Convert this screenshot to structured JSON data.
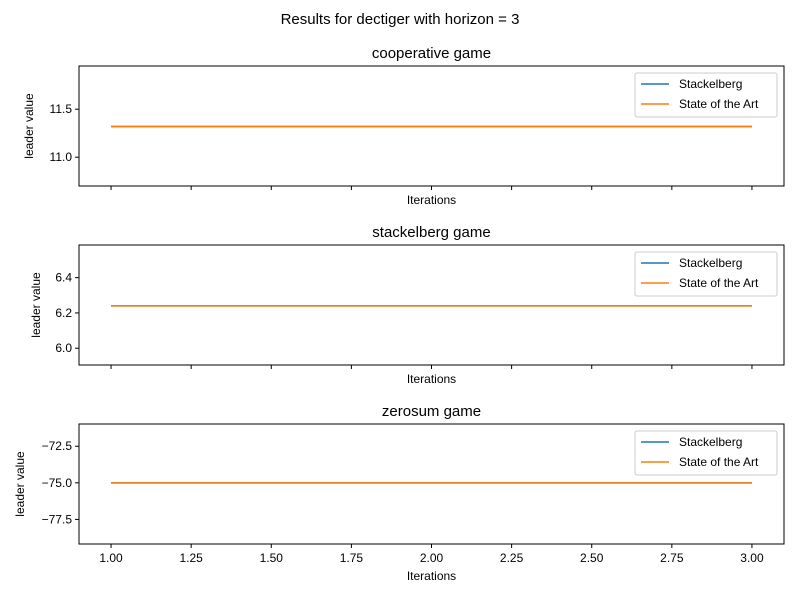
{
  "figure": {
    "suptitle": "Results for dectiger with horizon = 3"
  },
  "chart_data": [
    {
      "type": "line",
      "title": "cooperative game",
      "xlabel": "Iterations",
      "ylabel": "leader value",
      "xlim": [
        0.9,
        3.1
      ],
      "ylim": [
        10.7,
        11.95
      ],
      "x_ticks": [
        1.0,
        1.25,
        1.5,
        1.75,
        2.0,
        2.25,
        2.5,
        2.75,
        3.0
      ],
      "x_tick_labels_visible": false,
      "y_ticks": [
        11.0,
        11.5
      ],
      "y_tick_labels": [
        "11.0",
        "11.5"
      ],
      "grid": false,
      "legend_position": "top-right",
      "series": [
        {
          "name": "Stackelberg",
          "color": "#1f77b4",
          "x": [
            1,
            3
          ],
          "y": [
            11.32,
            11.32
          ]
        },
        {
          "name": "State of the Art",
          "color": "#ff7f0e",
          "x": [
            1,
            3
          ],
          "y": [
            11.32,
            11.32
          ]
        }
      ]
    },
    {
      "type": "line",
      "title": "stackelberg game",
      "xlabel": "Iterations",
      "ylabel": "leader value",
      "xlim": [
        0.9,
        3.1
      ],
      "ylim": [
        5.905,
        6.585
      ],
      "x_ticks": [
        1.0,
        1.25,
        1.5,
        1.75,
        2.0,
        2.25,
        2.5,
        2.75,
        3.0
      ],
      "x_tick_labels_visible": false,
      "y_ticks": [
        6.0,
        6.2,
        6.4
      ],
      "y_tick_labels": [
        "6.0",
        "6.2",
        "6.4"
      ],
      "grid": false,
      "legend_position": "top-right",
      "series": [
        {
          "name": "Stackelberg",
          "color": "#1f77b4",
          "x": [
            1,
            3
          ],
          "y": [
            6.24,
            6.24
          ]
        },
        {
          "name": "State of the Art",
          "color": "#ff7f0e",
          "x": [
            1,
            3
          ],
          "y": [
            6.24,
            6.24
          ]
        }
      ]
    },
    {
      "type": "line",
      "title": "zerosum game",
      "xlabel": "Iterations",
      "ylabel": "leader value",
      "xlim": [
        0.9,
        3.1
      ],
      "ylim": [
        -79.18,
        -70.98
      ],
      "x_ticks": [
        1.0,
        1.25,
        1.5,
        1.75,
        2.0,
        2.25,
        2.5,
        2.75,
        3.0
      ],
      "x_tick_labels_visible": true,
      "x_tick_labels": [
        "1.00",
        "1.25",
        "1.50",
        "1.75",
        "2.00",
        "2.25",
        "2.50",
        "2.75",
        "3.00"
      ],
      "y_ticks": [
        -77.5,
        -75.0,
        -72.5
      ],
      "y_tick_labels": [
        "−77.5",
        "−75.0",
        "−72.5"
      ],
      "grid": false,
      "legend_position": "top-right",
      "series": [
        {
          "name": "Stackelberg",
          "color": "#1f77b4",
          "x": [
            1,
            3
          ],
          "y": [
            -75.0,
            -75.0
          ]
        },
        {
          "name": "State of the Art",
          "color": "#ff7f0e",
          "x": [
            1,
            3
          ],
          "y": [
            -75.0,
            -75.0
          ]
        }
      ]
    }
  ]
}
